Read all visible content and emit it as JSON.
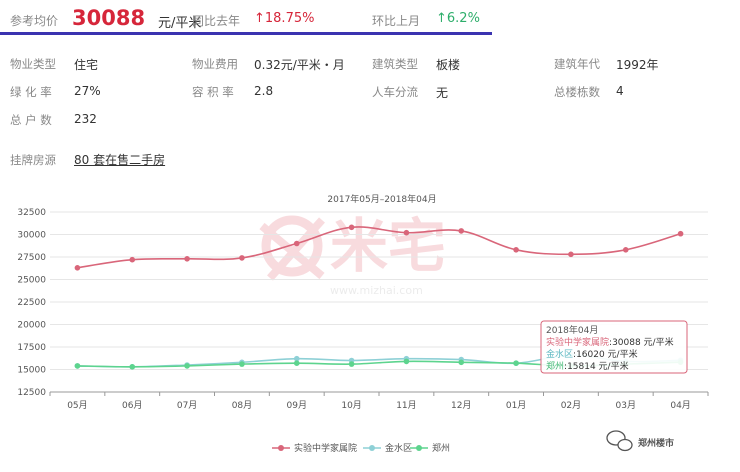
{
  "header": {
    "avg_label": "参考均价",
    "avg_price": "30088",
    "avg_unit": "元/平米",
    "yoy_label": "同比去年",
    "yoy_value": "↑18.75%",
    "mom_label": "环比上月",
    "mom_value": "↑6.2%"
  },
  "info": [
    {
      "label": "物业类型",
      "value": "住宅"
    },
    {
      "label": "物业费用",
      "value": "0.32元/平米・月"
    },
    {
      "label": "建筑类型",
      "value": "板楼"
    },
    {
      "label": "建筑年代",
      "value": "1992年"
    },
    {
      "label": "绿 化 率",
      "value": "27%"
    },
    {
      "label": "容 积 率",
      "value": "2.8"
    },
    {
      "label": "人车分流",
      "value": "无"
    },
    {
      "label": "总楼栋数",
      "value": "4"
    },
    {
      "label": "总 户 数",
      "value": "232"
    }
  ],
  "listing": {
    "label": "挂牌房源",
    "link": "80 套在售二手房"
  },
  "watermark": {
    "brand": "米宅",
    "url": "www.mizhai.com",
    "corner": "郑州楼市"
  },
  "colors": {
    "red": "#d6263a",
    "green": "#2eae6b",
    "series1": "#d9667a",
    "series2": "#8ed0d6",
    "series3": "#5dd48e"
  },
  "chart_data": {
    "type": "line",
    "title": "2017年05月–2018年04月",
    "categories": [
      "05月",
      "06月",
      "07月",
      "08月",
      "09月",
      "10月",
      "11月",
      "12月",
      "01月",
      "02月",
      "03月",
      "04月"
    ],
    "ylim": [
      12500,
      32500
    ],
    "yticks": [
      12500,
      15000,
      17500,
      20000,
      22500,
      25000,
      27500,
      30000,
      32500
    ],
    "series": [
      {
        "name": "实验中学家属院",
        "color": "#d9667a",
        "values": [
          26300,
          27200,
          27300,
          27400,
          29000,
          30800,
          30200,
          30400,
          28300,
          27800,
          28300,
          30088
        ]
      },
      {
        "name": "金水区",
        "color": "#8ed0d6",
        "values": [
          15400,
          15300,
          15500,
          15800,
          16200,
          16000,
          16200,
          16100,
          15700,
          16600,
          15900,
          16020
        ]
      },
      {
        "name": "郑州",
        "color": "#5dd48e",
        "values": [
          15400,
          15300,
          15400,
          15600,
          15700,
          15600,
          15900,
          15800,
          15700,
          15400,
          15600,
          15814
        ]
      }
    ],
    "tooltip": {
      "title": "2018年04月",
      "rows": [
        {
          "name": "实验中学家属院",
          "text": "30088 元/平米"
        },
        {
          "name": "金水区",
          "text": "16020 元/平米"
        },
        {
          "name": "郑州",
          "text": "15814 元/平米"
        }
      ]
    }
  }
}
